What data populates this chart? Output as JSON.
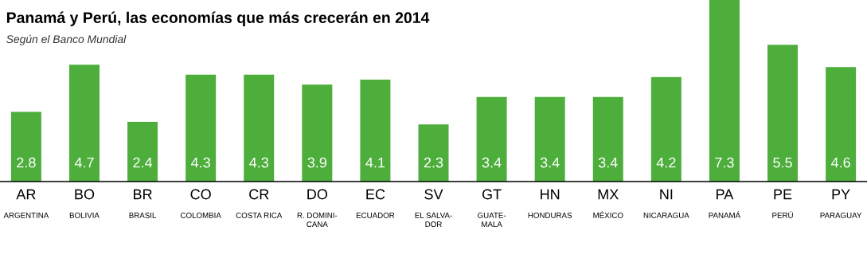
{
  "chart_data": {
    "type": "bar",
    "title": "Panamá y Perú, las economías que más crecerán en 2014",
    "subtitle": "Según el Banco Mundial",
    "categories": [
      "AR\nARGENTINA",
      "BO\nBOLIVIA",
      "BR\nBRASIL",
      "CO\nCOLOMBIA",
      "CR\nCOSTA RICA",
      "DO\nR. DOMINI-\nCANA",
      "EC\nECUADOR",
      "SV\nEL SALVA-\nDOR",
      "GT\nGUATE-\nMALA",
      "HN\nHONDURAS",
      "MX\nMÉXICO",
      "NI\nNICARAGUA",
      "PA\nPANAMÁ",
      "PE\nPERÚ",
      "PY\nPARAGUAY"
    ],
    "values": [
      2.8,
      4.7,
      2.4,
      4.3,
      4.3,
      3.9,
      4.1,
      2.3,
      3.4,
      3.4,
      3.4,
      4.2,
      7.3,
      5.5,
      4.6
    ],
    "color": "#4dae3c",
    "data_labels": true
  }
}
